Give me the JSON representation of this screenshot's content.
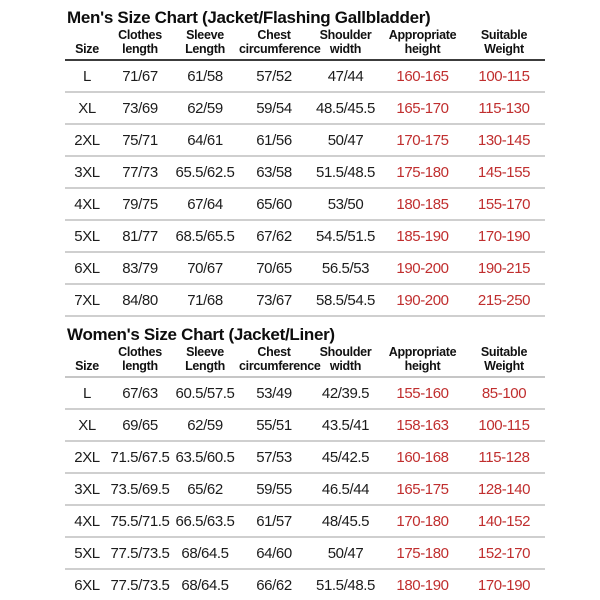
{
  "colors": {
    "red_text": "#c02e2e",
    "black_text": "#1c1c1c",
    "row_divider": "#cfcfcf",
    "men_header_underline": "#3c3c3c",
    "women_header_underline": "#c6c6c6",
    "background": "#ffffff"
  },
  "tables": [
    {
      "id": "men",
      "title": "Men's Size Chart (Jacket/Flashing Gallbladder)",
      "headers": [
        "Size",
        "Clothes\nlength",
        "Sleeve\nLength",
        "Chest\ncircumference",
        "Shoulder\nwidth",
        "Appropriate\nheight",
        "Suitable\nWeight"
      ],
      "red_columns": [
        5,
        6
      ],
      "rows": [
        [
          "L",
          "71/67",
          "61/58",
          "57/52",
          "47/44",
          "160-165",
          "100-115"
        ],
        [
          "XL",
          "73/69",
          "62/59",
          "59/54",
          "48.5/45.5",
          "165-170",
          "115-130"
        ],
        [
          "2XL",
          "75/71",
          "64/61",
          "61/56",
          "50/47",
          "170-175",
          "130-145"
        ],
        [
          "3XL",
          "77/73",
          "65.5/62.5",
          "63/58",
          "51.5/48.5",
          "175-180",
          "145-155"
        ],
        [
          "4XL",
          "79/75",
          "67/64",
          "65/60",
          "53/50",
          "180-185",
          "155-170"
        ],
        [
          "5XL",
          "81/77",
          "68.5/65.5",
          "67/62",
          "54.5/51.5",
          "185-190",
          "170-190"
        ],
        [
          "6XL",
          "83/79",
          "70/67",
          "70/65",
          "56.5/53",
          "190-200",
          "190-215"
        ],
        [
          "7XL",
          "84/80",
          "71/68",
          "73/67",
          "58.5/54.5",
          "190-200",
          "215-250"
        ]
      ]
    },
    {
      "id": "women",
      "title": "Women's Size Chart (Jacket/Liner)",
      "headers": [
        "Size",
        "Clothes\nlength",
        "Sleeve\nLength",
        "Chest\ncircumference",
        "Shoulder\nwidth",
        "Appropriate\nheight",
        "Suitable\nWeight"
      ],
      "red_columns": [
        5,
        6
      ],
      "rows": [
        [
          "L",
          "67/63",
          "60.5/57.5",
          "53/49",
          "42/39.5",
          "155-160",
          "85-100"
        ],
        [
          "XL",
          "69/65",
          "62/59",
          "55/51",
          "43.5/41",
          "158-163",
          "100-115"
        ],
        [
          "2XL",
          "71.5/67.5",
          "63.5/60.5",
          "57/53",
          "45/42.5",
          "160-168",
          "115-128"
        ],
        [
          "3XL",
          "73.5/69.5",
          "65/62",
          "59/55",
          "46.5/44",
          "165-175",
          "128-140"
        ],
        [
          "4XL",
          "75.5/71.5",
          "66.5/63.5",
          "61/57",
          "48/45.5",
          "170-180",
          "140-152"
        ],
        [
          "5XL",
          "77.5/73.5",
          "68/64.5",
          "64/60",
          "50/47",
          "175-180",
          "152-170"
        ],
        [
          "6XL",
          "77.5/73.5",
          "68/64.5",
          "66/62",
          "51.5/48.5",
          "180-190",
          "170-190"
        ]
      ]
    }
  ]
}
